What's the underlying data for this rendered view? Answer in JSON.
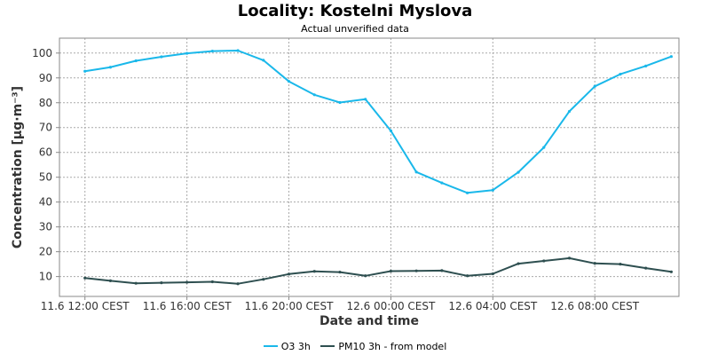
{
  "chart_data": {
    "type": "line",
    "title": "Locality: Kostelni Myslova",
    "subtitle": "Actual unverified data",
    "xlabel": "Date and time",
    "ylabel": "Concentration [µg·m⁻³]",
    "ylim": [
      2,
      106
    ],
    "yticks": [
      10,
      20,
      30,
      40,
      50,
      60,
      70,
      80,
      90,
      100
    ],
    "xticks": [
      "11.6 12:00 CEST",
      "11.6 16:00 CEST",
      "11.6 20:00 CEST",
      "12.6 00:00 CEST",
      "12.6 04:00 CEST",
      "12.6 08:00 CEST"
    ],
    "x_hours": [
      0,
      1,
      2,
      3,
      4,
      5,
      6,
      7,
      8,
      9,
      10,
      11,
      12,
      13,
      14,
      15,
      16,
      17,
      18,
      19,
      20,
      21,
      22,
      23
    ],
    "xlim_hours": [
      -1,
      23.3
    ],
    "grid": true,
    "legend_position": "bottom",
    "series": [
      {
        "name": "O3 3h",
        "color": "#1ab8ea",
        "values": [
          92.7,
          94.3,
          96.9,
          98.5,
          99.9,
          100.8,
          101.0,
          97.1,
          88.6,
          83.2,
          80.1,
          81.4,
          68.7,
          52.1,
          47.7,
          43.7,
          44.8,
          52.0,
          62.0,
          76.5,
          86.6,
          91.5,
          94.8,
          98.6
        ]
      },
      {
        "name": "PM10 3h - from model",
        "color": "#2e4f50",
        "values": [
          9.4,
          8.3,
          7.3,
          7.5,
          7.7,
          7.9,
          7.1,
          8.9,
          11.0,
          12.1,
          11.8,
          10.3,
          12.2,
          12.3,
          12.4,
          10.3,
          11.1,
          15.2,
          16.3,
          17.4,
          15.3,
          15.0,
          13.4,
          11.9
        ]
      }
    ]
  }
}
